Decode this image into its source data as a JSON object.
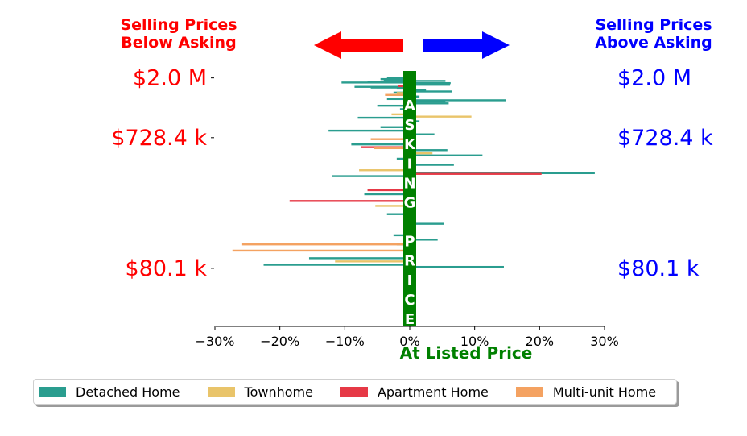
{
  "header": {
    "below_line1": "Selling Prices",
    "below_line2": "Below Asking",
    "above_line1": "Selling Prices",
    "above_line2": "Above Asking"
  },
  "chart_data": {
    "type": "bar",
    "orientation": "horizontal",
    "xlabel": "At Listed Price",
    "xlim": [
      -30,
      30
    ],
    "xticks": [
      -30,
      -20,
      -10,
      0,
      10,
      20,
      30
    ],
    "xtick_labels": [
      "−30%",
      "−20%",
      "−10%",
      "0%",
      "10%",
      "20%",
      "30%"
    ],
    "yticks": [
      {
        "label": "$2.0 M",
        "y": 2000
      },
      {
        "label": "$728.4 k",
        "y": 728.4
      },
      {
        "label": "$80.1 k",
        "y": 80.1
      }
    ],
    "ylim": [
      30,
      2250
    ],
    "center_band_text": "ASKING PRICE",
    "colors": {
      "below": "#ff0000",
      "above": "#0000ff",
      "center": "#008000",
      "Detached Home": "#2a9d8f",
      "Townhome": "#e9c46a",
      "Apartment Home": "#e63946",
      "Multi-unit Home": "#f4a261"
    },
    "legend": [
      "Detached Home",
      "Townhome",
      "Apartment Home",
      "Multi-unit Home"
    ],
    "legend_position": "bottom",
    "series": [
      {
        "name": "Detached Home",
        "points": [
          [
            2000,
            -3.5
          ],
          [
            1960,
            -4.5
          ],
          [
            1930,
            -4.0
          ],
          [
            1900,
            5.5
          ],
          [
            1870,
            -6.5
          ],
          [
            1850,
            -10.5
          ],
          [
            1830,
            6.3
          ],
          [
            1780,
            6.2
          ],
          [
            1720,
            -8.5
          ],
          [
            1700,
            -6.0
          ],
          [
            1670,
            -2.0
          ],
          [
            1630,
            2.5
          ],
          [
            1590,
            6.5
          ],
          [
            1560,
            -2.5
          ],
          [
            1500,
            -3.0
          ],
          [
            1460,
            1.5
          ],
          [
            1400,
            -3.5
          ],
          [
            1370,
            14.8
          ],
          [
            1340,
            5.5
          ],
          [
            1300,
            6.0
          ],
          [
            1250,
            -5.0
          ],
          [
            1180,
            -1.5
          ],
          [
            1020,
            -8.0
          ],
          [
            960,
            1.5
          ],
          [
            870,
            -4.5
          ],
          [
            820,
            -12.5
          ],
          [
            770,
            3.8
          ],
          [
            650,
            -9.0
          ],
          [
            590,
            5.8
          ],
          [
            540,
            11.2
          ],
          [
            510,
            -2.0
          ],
          [
            460,
            6.8
          ],
          [
            400,
            28.5
          ],
          [
            380,
            -12.0
          ],
          [
            280,
            -7.0
          ],
          [
            200,
            -3.5
          ],
          [
            170,
            5.3
          ],
          [
            140,
            -2.5
          ],
          [
            130,
            4.3
          ],
          [
            120,
            -2.0
          ],
          [
            95,
            -15.5
          ],
          [
            85,
            -22.5
          ],
          [
            82,
            14.5
          ]
        ]
      },
      {
        "name": "Townhome",
        "points": [
          [
            1550,
            -2.0
          ],
          [
            1080,
            -2.8
          ],
          [
            1040,
            9.5
          ],
          [
            560,
            3.5
          ],
          [
            420,
            -7.8
          ],
          [
            230,
            -5.3
          ],
          [
            90,
            -11.5
          ]
        ]
      },
      {
        "name": "Apartment Home",
        "points": [
          [
            1740,
            -1.8
          ],
          [
            620,
            -7.5
          ],
          [
            395,
            20.3
          ],
          [
            300,
            -6.5
          ],
          [
            250,
            -18.5
          ]
        ]
      },
      {
        "name": "Multi-unit Home",
        "points": [
          [
            1500,
            -3.8
          ],
          [
            710,
            -6.0
          ],
          [
            610,
            -5.5
          ],
          [
            120,
            -25.8
          ],
          [
            108,
            -27.3
          ]
        ]
      }
    ]
  }
}
